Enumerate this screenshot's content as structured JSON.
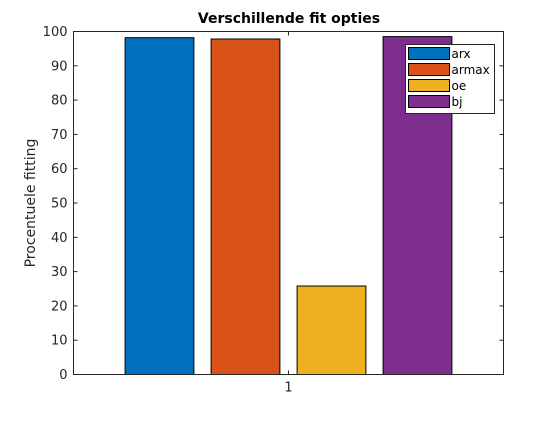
{
  "chart_data": {
    "type": "bar",
    "title": "Verschillende fit opties",
    "xlabel": "",
    "ylabel": "Procentuele fitting",
    "categories": [
      "1"
    ],
    "series": [
      {
        "name": "arx",
        "values": [
          98.2
        ],
        "color": "#0072bd"
      },
      {
        "name": "armax",
        "values": [
          97.8
        ],
        "color": "#d95319"
      },
      {
        "name": "oe",
        "values": [
          25.8
        ],
        "color": "#edb120"
      },
      {
        "name": "bj",
        "values": [
          98.5
        ],
        "color": "#7e2f8e"
      }
    ],
    "ylim": [
      0,
      100
    ],
    "yticks": [
      0,
      10,
      20,
      30,
      40,
      50,
      60,
      70,
      80,
      90,
      100
    ],
    "xlim": [
      0.55,
      1.45
    ],
    "grid": false,
    "legend_position": "top-right"
  }
}
